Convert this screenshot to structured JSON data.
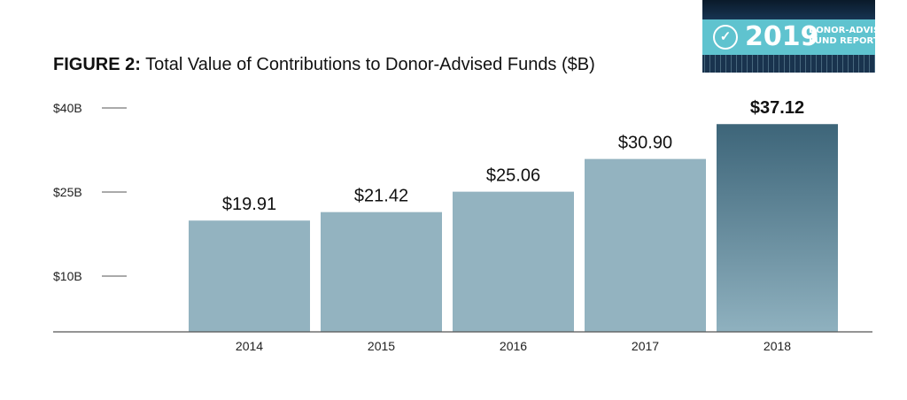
{
  "badge": {
    "year": "2019",
    "line1": "DONOR-ADVISED",
    "line2": "FUND REPORT",
    "logo_icon": "donor-advised-logo-icon"
  },
  "title": {
    "prefix": "FIGURE 2:",
    "text": "Total Value of Contributions to Donor-Advised Funds ($B)"
  },
  "colors": {
    "bar": "#93b3c0",
    "highlight_top": "#3d6579",
    "highlight_bottom": "#8fb1bf",
    "axis": "#555555"
  },
  "chart_data": {
    "type": "bar",
    "title": "Total Value of Contributions to Donor-Advised Funds ($B)",
    "xlabel": "",
    "ylabel": "",
    "categories": [
      "2014",
      "2015",
      "2016",
      "2017",
      "2018"
    ],
    "values": [
      19.91,
      21.42,
      25.06,
      30.9,
      37.12
    ],
    "value_labels": [
      "$19.91",
      "$21.42",
      "$25.06",
      "$30.90",
      "$37.12"
    ],
    "highlight_index": 4,
    "yticks": [
      10,
      25,
      40
    ],
    "ytick_labels": [
      "$10B",
      "$25B",
      "$40B"
    ],
    "grid": false,
    "legend": "none"
  }
}
